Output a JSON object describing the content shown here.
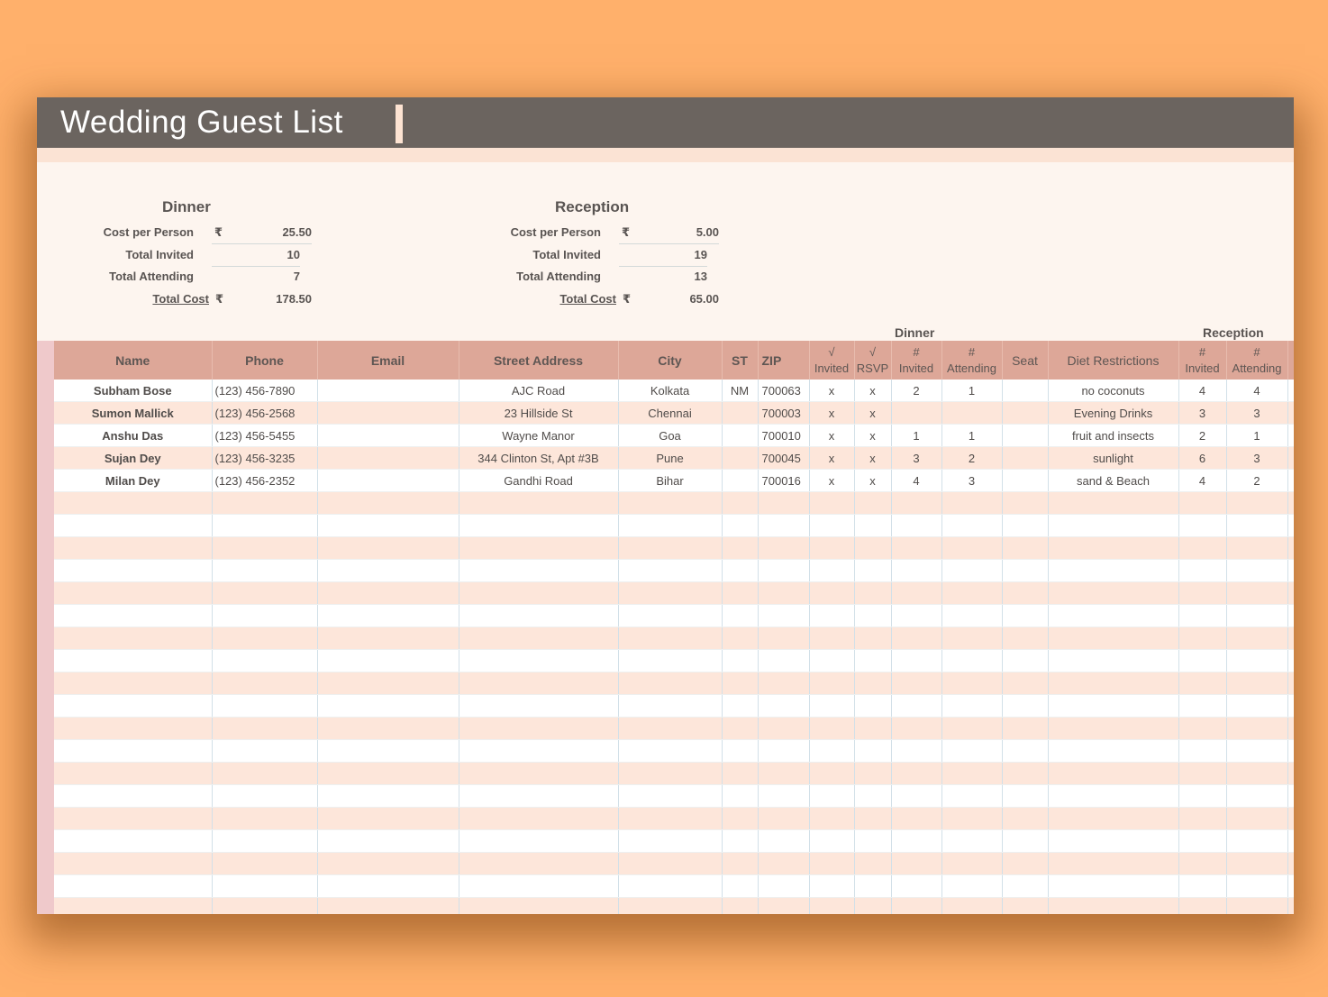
{
  "title": "Wedding Guest List",
  "dinner_summary": {
    "heading": "Dinner",
    "cost_label": "Cost per Person",
    "currency": "₹",
    "cost_value": "25.50",
    "invited_label": "Total Invited",
    "invited_value": "10",
    "attending_label": "Total Attending",
    "attending_value": "7",
    "total_label": "Total Cost",
    "total_value": "178.50"
  },
  "reception_summary": {
    "heading": "Reception",
    "cost_label": "Cost per Person",
    "currency": "₹",
    "cost_value": "5.00",
    "invited_label": "Total Invited",
    "invited_value": "19",
    "attending_label": "Total Attending",
    "attending_value": "13",
    "total_label": "Total Cost",
    "total_value": "65.00"
  },
  "group_labels": {
    "dinner": "Dinner",
    "reception": "Reception"
  },
  "columns": {
    "name": "Name",
    "phone": "Phone",
    "email": "Email",
    "street": "Street Address",
    "city": "City",
    "st": "ST",
    "zip": "ZIP",
    "d_invited_top": "√",
    "d_invited_bottom": "Invited",
    "d_rsvp_top": "√",
    "d_rsvp_bottom": "RSVP",
    "d_num_invited_top": "#",
    "d_num_invited_bottom": "Invited",
    "d_num_attending_top": "#",
    "d_num_attending_bottom": "Attending",
    "seat": "Seat",
    "diet": "Diet Restrictions",
    "r_invited_top": "#",
    "r_invited_bottom": "Invited",
    "r_attending_top": "#",
    "r_attending_bottom": "Attending"
  },
  "rows": [
    {
      "name": "Subham Bose",
      "phone": "(123) 456-7890",
      "email": "",
      "street": "AJC Road",
      "city": "Kolkata",
      "st": "NM",
      "zip": "700063",
      "d_invited": "x",
      "d_rsvp": "x",
      "d_num_invited": "2",
      "d_num_attending": "1",
      "seat": "",
      "diet": "no coconuts",
      "r_invited": "4",
      "r_attending": "4"
    },
    {
      "name": "Sumon Mallick",
      "phone": "(123) 456-2568",
      "email": "",
      "street": "23 Hillside St",
      "city": "Chennai",
      "st": "",
      "zip": "700003",
      "d_invited": "x",
      "d_rsvp": "x",
      "d_num_invited": "",
      "d_num_attending": "",
      "seat": "",
      "diet": "Evening Drinks",
      "r_invited": "3",
      "r_attending": "3"
    },
    {
      "name": "Anshu Das",
      "phone": "(123) 456-5455",
      "email": "",
      "street": "Wayne Manor",
      "city": "Goa",
      "st": "",
      "zip": "700010",
      "d_invited": "x",
      "d_rsvp": "x",
      "d_num_invited": "1",
      "d_num_attending": "1",
      "seat": "",
      "diet": "fruit and insects",
      "r_invited": "2",
      "r_attending": "1"
    },
    {
      "name": "Sujan Dey",
      "phone": "(123) 456-3235",
      "email": "",
      "street": "344 Clinton St, Apt #3B",
      "city": "Pune",
      "st": "",
      "zip": "700045",
      "d_invited": "x",
      "d_rsvp": "x",
      "d_num_invited": "3",
      "d_num_attending": "2",
      "seat": "",
      "diet": "sunlight",
      "r_invited": "6",
      "r_attending": "3"
    },
    {
      "name": "Milan Dey",
      "phone": "(123) 456-2352",
      "email": "",
      "street": "Gandhi Road",
      "city": "Bihar",
      "st": "",
      "zip": "700016",
      "d_invited": "x",
      "d_rsvp": "x",
      "d_num_invited": "4",
      "d_num_attending": "3",
      "seat": "",
      "diet": "sand & Beach",
      "r_invited": "4",
      "r_attending": "2"
    }
  ],
  "empty_row_count": 19
}
